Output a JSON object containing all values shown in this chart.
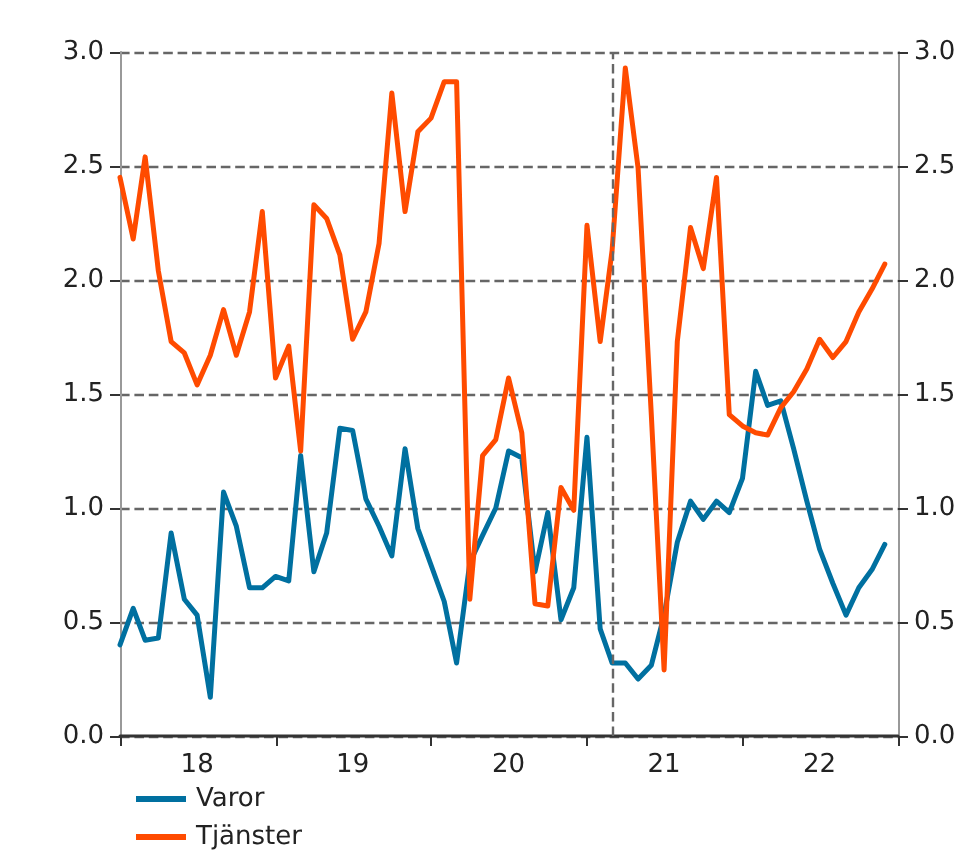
{
  "chart_data": {
    "type": "line",
    "x": [
      "2018-01",
      "2018-02",
      "2018-03",
      "2018-04",
      "2018-05",
      "2018-06",
      "2018-07",
      "2018-08",
      "2018-09",
      "2018-10",
      "2018-11",
      "2018-12",
      "2019-01",
      "2019-02",
      "2019-03",
      "2019-04",
      "2019-05",
      "2019-06",
      "2019-07",
      "2019-08",
      "2019-09",
      "2019-10",
      "2019-11",
      "2019-12",
      "2020-01",
      "2020-02",
      "2020-03",
      "2020-04",
      "2020-05",
      "2020-06",
      "2020-07",
      "2020-08",
      "2020-09",
      "2020-10",
      "2020-11",
      "2020-12",
      "2021-01",
      "2021-02",
      "2021-03",
      "2021-04",
      "2021-05",
      "2021-06",
      "2021-07",
      "2021-08",
      "2021-09",
      "2021-10",
      "2021-11",
      "2021-12",
      "2022-01",
      "2022-02",
      "2022-03",
      "2022-04",
      "2022-05",
      "2022-06",
      "2022-07",
      "2022-08",
      "2022-09",
      "2022-10",
      "2022-11",
      "2022-12"
    ],
    "series": [
      {
        "name": "Varor",
        "color": "#0070a0",
        "values": [
          0.4,
          0.56,
          0.42,
          0.43,
          0.89,
          0.6,
          0.53,
          0.17,
          1.07,
          0.92,
          0.65,
          0.65,
          0.7,
          0.68,
          1.23,
          0.72,
          0.89,
          1.35,
          1.34,
          1.04,
          0.92,
          0.79,
          1.26,
          0.91,
          0.75,
          0.59,
          0.32,
          0.76,
          0.88,
          1.0,
          1.25,
          1.22,
          0.72,
          0.98,
          0.51,
          0.65,
          1.31,
          0.47,
          0.32,
          0.32,
          0.25,
          0.31,
          0.53,
          0.85,
          1.03,
          0.95,
          1.03,
          0.98,
          1.13,
          1.6,
          1.45,
          1.47,
          1.26,
          1.03,
          0.82,
          0.67,
          0.53,
          0.65,
          0.73,
          0.84
        ]
      },
      {
        "name": "Tjänster",
        "color": "#ff4b00",
        "values": [
          2.45,
          2.18,
          2.54,
          2.04,
          1.73,
          1.68,
          1.54,
          1.67,
          1.87,
          1.67,
          1.86,
          2.3,
          1.57,
          1.71,
          1.25,
          2.33,
          2.27,
          2.11,
          1.74,
          1.86,
          2.16,
          2.82,
          2.3,
          2.65,
          2.71,
          2.87,
          2.87,
          0.6,
          1.23,
          1.3,
          1.57,
          1.33,
          0.58,
          0.57,
          1.09,
          0.99,
          2.24,
          1.73,
          2.13,
          2.93,
          2.49,
          1.41,
          0.29,
          1.73,
          2.23,
          2.05,
          2.45,
          1.41,
          1.36,
          1.33,
          1.32,
          1.44,
          1.51,
          1.61,
          1.74,
          1.66,
          1.73,
          1.86,
          1.96,
          2.07
        ]
      }
    ],
    "xlim": [
      "2018-01",
      "2023-01"
    ],
    "xticks": [
      {
        "value": "2018-01",
        "label": null
      },
      {
        "value": "2018-07",
        "label": "18"
      },
      {
        "value": "2019-01",
        "label": null
      },
      {
        "value": "2019-07",
        "label": "19"
      },
      {
        "value": "2020-01",
        "label": null
      },
      {
        "value": "2020-07",
        "label": "20"
      },
      {
        "value": "2021-01",
        "label": null
      },
      {
        "value": "2021-07",
        "label": "21"
      },
      {
        "value": "2022-01",
        "label": null
      },
      {
        "value": "2022-07",
        "label": "22"
      },
      {
        "value": "2023-01",
        "label": null
      }
    ],
    "ylim": [
      0,
      3
    ],
    "yticks": [
      {
        "value": 0,
        "label": "0.0"
      },
      0.5,
      {
        "value": 1,
        "label": "1.0"
      },
      1.5,
      {
        "value": 2,
        "label": "2.0"
      },
      2.5,
      {
        "value": 3,
        "label": "3.0"
      }
    ],
    "y2lim": [
      0,
      3
    ],
    "y2ticks": [
      {
        "value": 0,
        "label": "0.0"
      },
      0.5,
      {
        "value": 1,
        "label": "1.0"
      },
      1.5,
      {
        "value": 2,
        "label": "2.0"
      },
      2.5,
      {
        "value": 3,
        "label": "3.0"
      }
    ],
    "ref_lines": [
      {
        "axis": "x",
        "value": "2021-03",
        "line_style": "dashed",
        "color": "#666666"
      }
    ],
    "grid": "y",
    "legend": "bottom left",
    "marker": "none",
    "line_style": "solid"
  }
}
